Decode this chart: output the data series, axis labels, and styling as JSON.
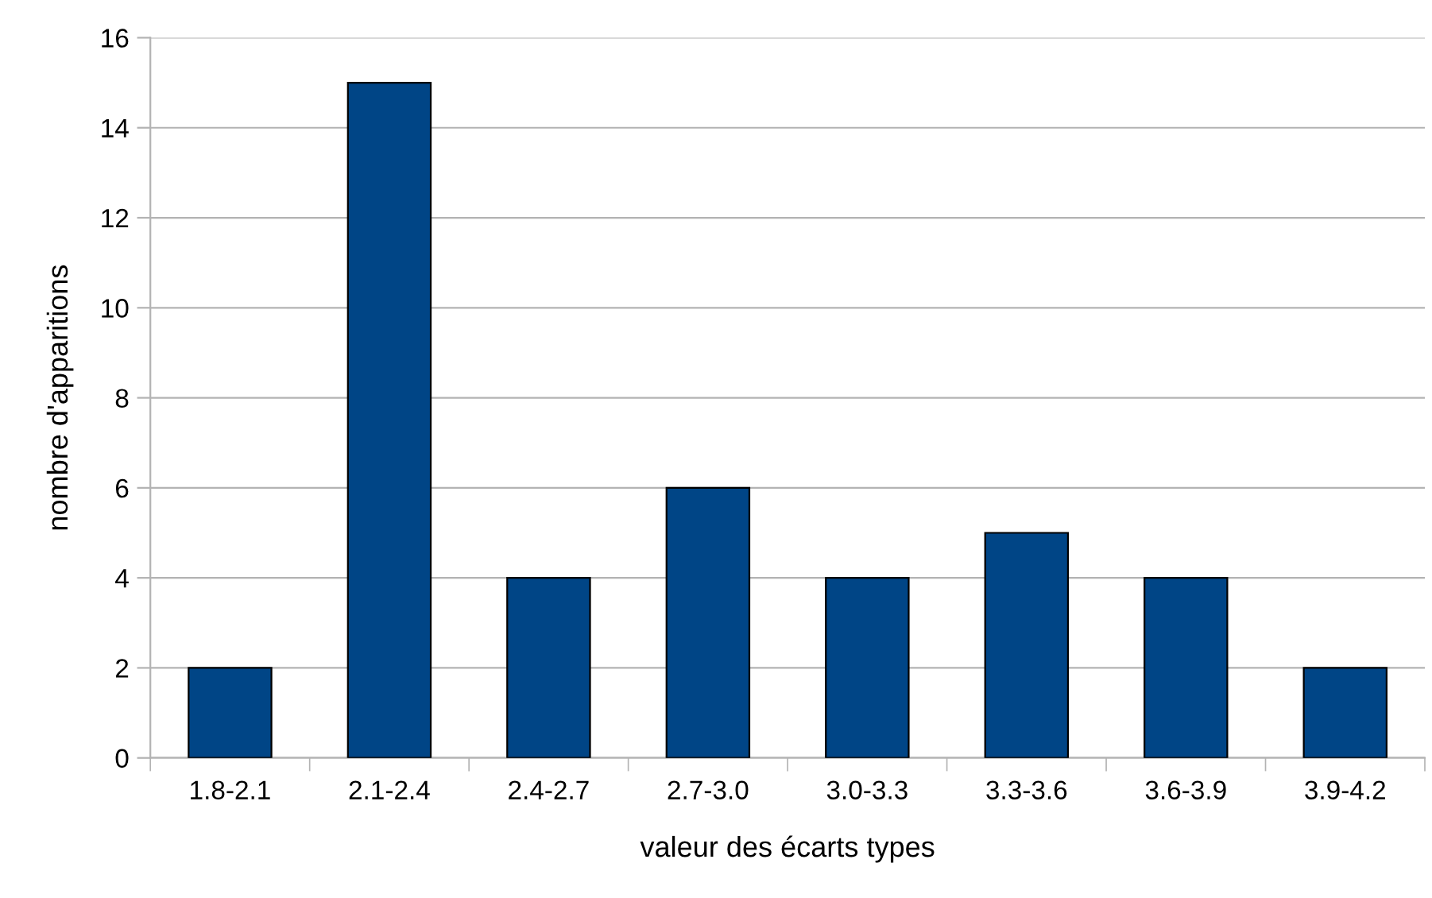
{
  "chart_data": {
    "type": "bar",
    "xlabel": "valeur des écarts types",
    "ylabel": "nombre d'apparitions",
    "categories": [
      "1.8-2.1",
      "2.1-2.4",
      "2.4-2.7",
      "2.7-3.0",
      "3.0-3.3",
      "3.3-3.6",
      "3.6-3.9",
      "3.9-4.2"
    ],
    "values": [
      2,
      15,
      4,
      6,
      4,
      5,
      4,
      2
    ],
    "color": "#004586",
    "ylim": [
      0,
      16
    ],
    "yticks": [
      0,
      2,
      4,
      6,
      8,
      10,
      12,
      14,
      16
    ],
    "grid": "y",
    "legend": false
  }
}
